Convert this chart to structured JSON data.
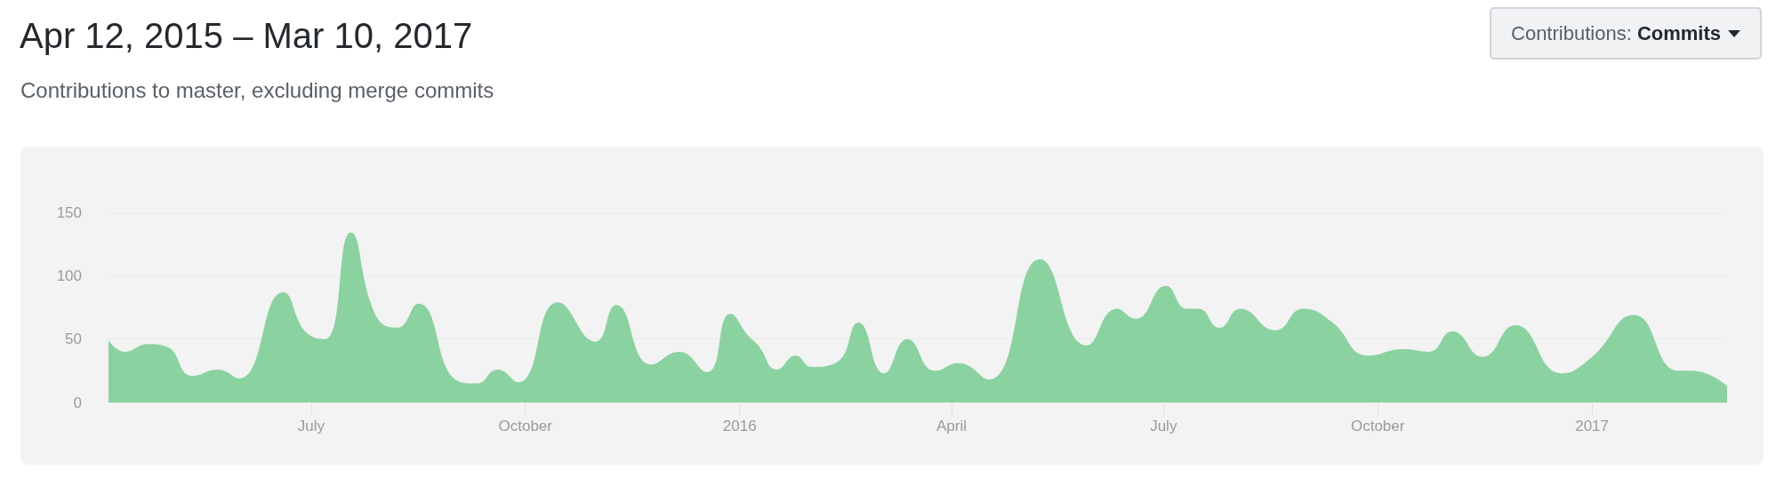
{
  "chart_data": {
    "type": "area",
    "title": "Apr 12, 2015 – Mar 10, 2017",
    "subtitle": "Contributions to master, excluding merge commits",
    "annotations": [
      "Contributions: Commits"
    ],
    "x": [
      "2015-04-05",
      "2015-04-12",
      "2015-04-22",
      "2015-04-30",
      "2015-05-11",
      "2015-05-22",
      "2015-05-31",
      "2015-06-19",
      "2015-06-29",
      "2015-07-07",
      "2015-07-18",
      "2015-07-29",
      "2015-08-07",
      "2015-08-16",
      "2015-09-02",
      "2015-09-10",
      "2015-09-19",
      "2015-09-28",
      "2015-10-15",
      "2015-10-31",
      "2015-11-09",
      "2015-11-24",
      "2015-12-06",
      "2015-12-18",
      "2015-12-28",
      "2016-01-05",
      "2016-01-09",
      "2016-01-17",
      "2016-01-25",
      "2016-02-01",
      "2016-02-12",
      "2016-02-21",
      "2016-03-03",
      "2016-03-13",
      "2016-03-25",
      "2016-04-04",
      "2016-04-17",
      "2016-05-09",
      "2016-05-29",
      "2016-06-11",
      "2016-06-19",
      "2016-07-02",
      "2016-07-11",
      "2016-07-16",
      "2016-07-25",
      "2016-08-03",
      "2016-08-18",
      "2016-08-30",
      "2016-09-11",
      "2016-09-27",
      "2016-10-12",
      "2016-10-23",
      "2016-11-02",
      "2016-11-15",
      "2016-11-29",
      "2016-12-19",
      "2017-01-01",
      "2017-01-19",
      "2017-02-07",
      "2017-02-13",
      "2017-02-28"
    ],
    "series": [
      {
        "color": "#8ad3a0",
        "values": [
          49,
          40,
          46,
          44,
          21,
          26,
          19,
          87,
          55,
          50,
          134,
          68,
          59,
          78,
          17,
          15,
          26,
          16,
          79,
          48,
          77,
          30,
          40,
          24,
          70,
          52,
          45,
          26,
          37,
          28,
          32,
          63,
          23,
          50,
          25,
          31,
          18,
          113,
          45,
          74,
          66,
          92,
          74,
          74,
          59,
          74,
          57,
          74,
          64,
          37,
          42,
          40,
          56,
          36,
          61,
          23,
          36,
          69,
          25,
          25,
          13
        ]
      }
    ],
    "xlim": [
      "2015-04-05",
      "2017-02-28"
    ],
    "xticks": [
      {
        "value": "2015-07-01",
        "label": "July"
      },
      {
        "value": "2015-10-01",
        "label": "October"
      },
      {
        "value": "2016-01-01",
        "label": "2016"
      },
      {
        "value": "2016-04-01",
        "label": "April"
      },
      {
        "value": "2016-07-01",
        "label": "July"
      },
      {
        "value": "2016-10-01",
        "label": "October"
      },
      {
        "value": "2017-01-01",
        "label": "2017"
      }
    ],
    "ylim": [
      0,
      150
    ],
    "yticks": [
      0,
      50,
      100,
      150
    ],
    "grid": "y",
    "marker": "none"
  }
}
